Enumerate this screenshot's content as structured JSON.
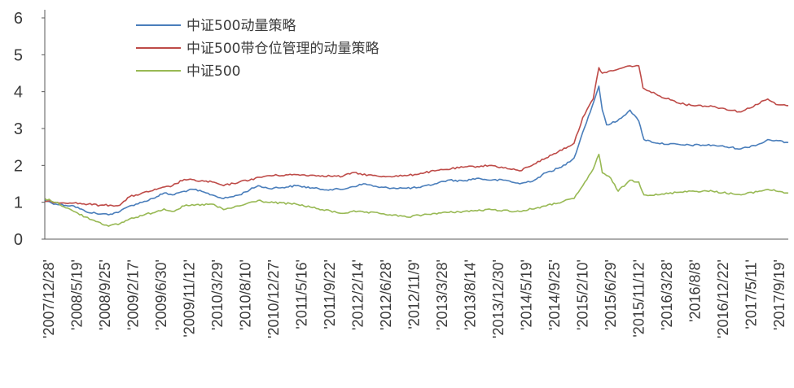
{
  "chart_data": {
    "type": "line",
    "title": "",
    "xlabel": "",
    "ylabel": "",
    "ylim": [
      0,
      6
    ],
    "yticks": [
      "0",
      "1",
      "2",
      "3",
      "4",
      "5",
      "6"
    ],
    "grid": false,
    "legend_position": "top-left",
    "x_tick_labels": [
      "'2007/12/28'",
      "'2008/5/19'",
      "'2008/9/25'",
      "'2009/2/17'",
      "'2009/6/30'",
      "'2009/11/12'",
      "'2010/3/29'",
      "'2010/8/10'",
      "'2010/12/27'",
      "'2011/5/16'",
      "'2011/9/22'",
      "'2012/2/14'",
      "'2012/6/28'",
      "'2012/11/9'",
      "'2013/3/28'",
      "'2013/8/14'",
      "'2013/12/30'",
      "'2014/5/19'",
      "'2014/9/25'",
      "'2015/2/10'",
      "'2015/6/29'",
      "'2015/11/12'",
      "'2016/3/28'",
      "'2016/8/8'",
      "'2016/12/22'",
      "'2017/5/11'",
      "'2017/9/19'"
    ],
    "x_start": "2007/12/28",
    "x_end": "2017/12/29",
    "series": [
      {
        "name": "中证500动量策略",
        "color": "#4a7ebb",
        "values": [
          [
            "2007/12/28",
            1.05
          ],
          [
            "2008/2/20",
            0.95
          ],
          [
            "2008/5/19",
            0.9
          ],
          [
            "2008/7/15",
            0.75
          ],
          [
            "2008/9/25",
            0.68
          ],
          [
            "2008/11/15",
            0.68
          ],
          [
            "2008/12/31",
            0.75
          ],
          [
            "2009/2/17",
            0.9
          ],
          [
            "2009/4/20",
            1.0
          ],
          [
            "2009/6/30",
            1.15
          ],
          [
            "2009/8/5",
            1.25
          ],
          [
            "2009/9/15",
            1.2
          ],
          [
            "2009/11/12",
            1.3
          ],
          [
            "2009/12/30",
            1.35
          ],
          [
            "2010/3/29",
            1.2
          ],
          [
            "2010/5/25",
            1.1
          ],
          [
            "2010/8/10",
            1.2
          ],
          [
            "2010/11/10",
            1.45
          ],
          [
            "2010/12/27",
            1.38
          ],
          [
            "2011/3/10",
            1.4
          ],
          [
            "2011/5/16",
            1.45
          ],
          [
            "2011/9/22",
            1.35
          ],
          [
            "2011/12/30",
            1.35
          ],
          [
            "2012/2/14",
            1.42
          ],
          [
            "2012/4/20",
            1.5
          ],
          [
            "2012/6/28",
            1.4
          ],
          [
            "2012/11/9",
            1.38
          ],
          [
            "2013/1/15",
            1.4
          ],
          [
            "2013/3/28",
            1.5
          ],
          [
            "2013/5/30",
            1.6
          ],
          [
            "2013/8/14",
            1.58
          ],
          [
            "2013/10/20",
            1.65
          ],
          [
            "2013/12/30",
            1.6
          ],
          [
            "2014/3/10",
            1.6
          ],
          [
            "2014/5/19",
            1.5
          ],
          [
            "2014/7/30",
            1.6
          ],
          [
            "2014/9/25",
            1.8
          ],
          [
            "2014/12/10",
            1.95
          ],
          [
            "2015/2/10",
            2.2
          ],
          [
            "2015/3/25",
            2.9
          ],
          [
            "2015/5/10",
            3.6
          ],
          [
            "2015/6/12",
            4.15
          ],
          [
            "2015/6/29",
            3.5
          ],
          [
            "2015/7/20",
            3.1
          ],
          [
            "2015/9/10",
            3.2
          ],
          [
            "2015/11/12",
            3.5
          ],
          [
            "2015/12/25",
            3.2
          ],
          [
            "2016/1/20",
            2.7
          ],
          [
            "2016/3/28",
            2.6
          ],
          [
            "2016/8/8",
            2.55
          ],
          [
            "2016/12/22",
            2.55
          ],
          [
            "2017/5/11",
            2.45
          ],
          [
            "2017/8/20",
            2.6
          ],
          [
            "2017/9/19",
            2.7
          ],
          [
            "2017/12/29",
            2.62
          ]
        ]
      },
      {
        "name": "中证500带仓位管理的动量策略",
        "color": "#be4b48",
        "values": [
          [
            "2007/12/28",
            1.02
          ],
          [
            "2008/5/19",
            0.98
          ],
          [
            "2008/9/25",
            0.92
          ],
          [
            "2008/12/31",
            0.92
          ],
          [
            "2009/2/17",
            1.15
          ],
          [
            "2009/6/30",
            1.35
          ],
          [
            "2009/9/15",
            1.45
          ],
          [
            "2009/11/12",
            1.62
          ],
          [
            "2010/3/29",
            1.55
          ],
          [
            "2010/5/25",
            1.45
          ],
          [
            "2010/8/10",
            1.55
          ],
          [
            "2010/12/27",
            1.72
          ],
          [
            "2011/5/16",
            1.75
          ],
          [
            "2011/9/22",
            1.72
          ],
          [
            "2011/12/30",
            1.7
          ],
          [
            "2012/2/14",
            1.8
          ],
          [
            "2012/6/28",
            1.7
          ],
          [
            "2012/11/9",
            1.72
          ],
          [
            "2013/3/28",
            1.85
          ],
          [
            "2013/8/14",
            1.95
          ],
          [
            "2013/12/30",
            2.0
          ],
          [
            "2014/5/19",
            1.85
          ],
          [
            "2014/9/25",
            2.2
          ],
          [
            "2015/2/10",
            2.6
          ],
          [
            "2015/3/25",
            3.3
          ],
          [
            "2015/5/15",
            3.8
          ],
          [
            "2015/6/12",
            4.65
          ],
          [
            "2015/6/29",
            4.5
          ],
          [
            "2015/9/10",
            4.6
          ],
          [
            "2015/11/12",
            4.7
          ],
          [
            "2015/12/25",
            4.7
          ],
          [
            "2016/1/15",
            4.1
          ],
          [
            "2016/3/28",
            3.9
          ],
          [
            "2016/8/8",
            3.65
          ],
          [
            "2016/12/22",
            3.6
          ],
          [
            "2017/5/11",
            3.45
          ],
          [
            "2017/9/19",
            3.8
          ],
          [
            "2017/10/30",
            3.65
          ],
          [
            "2017/12/29",
            3.62
          ]
        ]
      },
      {
        "name": "中证500",
        "color": "#98b954",
        "values": [
          [
            "2007/12/28",
            1.1
          ],
          [
            "2008/2/20",
            1.0
          ],
          [
            "2008/5/19",
            0.75
          ],
          [
            "2008/7/15",
            0.6
          ],
          [
            "2008/9/25",
            0.45
          ],
          [
            "2008/11/5",
            0.35
          ],
          [
            "2008/12/31",
            0.42
          ],
          [
            "2009/2/17",
            0.55
          ],
          [
            "2009/6/30",
            0.75
          ],
          [
            "2009/8/5",
            0.82
          ],
          [
            "2009/9/15",
            0.75
          ],
          [
            "2009/11/12",
            0.9
          ],
          [
            "2010/3/29",
            0.95
          ],
          [
            "2010/5/25",
            0.8
          ],
          [
            "2010/8/10",
            0.9
          ],
          [
            "2010/11/10",
            1.05
          ],
          [
            "2010/12/27",
            1.0
          ],
          [
            "2011/5/16",
            0.95
          ],
          [
            "2011/9/22",
            0.8
          ],
          [
            "2011/12/30",
            0.7
          ],
          [
            "2012/2/14",
            0.75
          ],
          [
            "2012/6/28",
            0.7
          ],
          [
            "2012/11/9",
            0.6
          ],
          [
            "2013/3/28",
            0.7
          ],
          [
            "2013/8/14",
            0.75
          ],
          [
            "2013/12/30",
            0.8
          ],
          [
            "2014/5/19",
            0.75
          ],
          [
            "2014/9/25",
            0.9
          ],
          [
            "2015/2/10",
            1.1
          ],
          [
            "2015/3/25",
            1.45
          ],
          [
            "2015/5/15",
            1.9
          ],
          [
            "2015/6/12",
            2.3
          ],
          [
            "2015/6/29",
            1.8
          ],
          [
            "2015/8/10",
            1.65
          ],
          [
            "2015/9/15",
            1.3
          ],
          [
            "2015/11/12",
            1.6
          ],
          [
            "2015/12/25",
            1.55
          ],
          [
            "2016/1/20",
            1.2
          ],
          [
            "2016/3/28",
            1.2
          ],
          [
            "2016/8/8",
            1.3
          ],
          [
            "2016/12/22",
            1.3
          ],
          [
            "2017/5/11",
            1.2
          ],
          [
            "2017/9/19",
            1.35
          ],
          [
            "2017/12/29",
            1.25
          ]
        ]
      }
    ]
  }
}
